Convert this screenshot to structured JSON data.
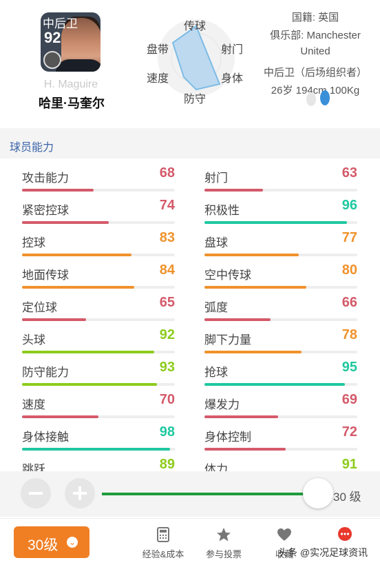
{
  "player": {
    "card_position": "中后卫",
    "overall": "92",
    "name_en": "H. Maguire",
    "name_cn": "哈里·马奎尔"
  },
  "radar": {
    "labels": [
      "传球",
      "射门",
      "身体",
      "防守",
      "速度",
      "盘带"
    ]
  },
  "info": {
    "nationality": "国籍: 英国",
    "club_line1": "俱乐部: Manchester",
    "club_line2": "United",
    "role": "中后卫（后场组织者）",
    "stats": "26岁 194cm 100Kg"
  },
  "section_title": "球员能力",
  "colors": {
    "red": "#d45a6a",
    "orange": "#f0922b",
    "green": "#8ccc1c",
    "teal": "#1ec8a0"
  },
  "attributes": [
    {
      "name": "攻击能力",
      "value": 68,
      "color": "red"
    },
    {
      "name": "射门",
      "value": 63,
      "color": "red"
    },
    {
      "name": "紧密控球",
      "value": 74,
      "color": "red"
    },
    {
      "name": "积极性",
      "value": 96,
      "color": "teal"
    },
    {
      "name": "控球",
      "value": 83,
      "color": "orange"
    },
    {
      "name": "盘球",
      "value": 77,
      "color": "orange"
    },
    {
      "name": "地面传球",
      "value": 84,
      "color": "orange"
    },
    {
      "name": "空中传球",
      "value": 80,
      "color": "orange"
    },
    {
      "name": "定位球",
      "value": 65,
      "color": "red"
    },
    {
      "name": "弧度",
      "value": 66,
      "color": "red"
    },
    {
      "name": "头球",
      "value": 92,
      "color": "green"
    },
    {
      "name": "脚下力量",
      "value": 78,
      "color": "orange"
    },
    {
      "name": "防守能力",
      "value": 93,
      "color": "green"
    },
    {
      "name": "抢球",
      "value": 95,
      "color": "teal"
    },
    {
      "name": "速度",
      "value": 70,
      "color": "red"
    },
    {
      "name": "爆发力",
      "value": 69,
      "color": "red"
    },
    {
      "name": "身体接触",
      "value": 98,
      "color": "teal"
    },
    {
      "name": "身体控制",
      "value": 72,
      "color": "red"
    },
    {
      "name": "跳跃",
      "value": 89,
      "color": "green"
    },
    {
      "name": "体力",
      "value": 91,
      "color": "green"
    }
  ],
  "level": {
    "display": "30 级",
    "slider_fraction": 0.97
  },
  "bottom": {
    "level_button": "30级",
    "tabs": [
      "经验&成本",
      "参与投票",
      "收藏"
    ],
    "watermark": "头条 @实况足球资讯"
  }
}
